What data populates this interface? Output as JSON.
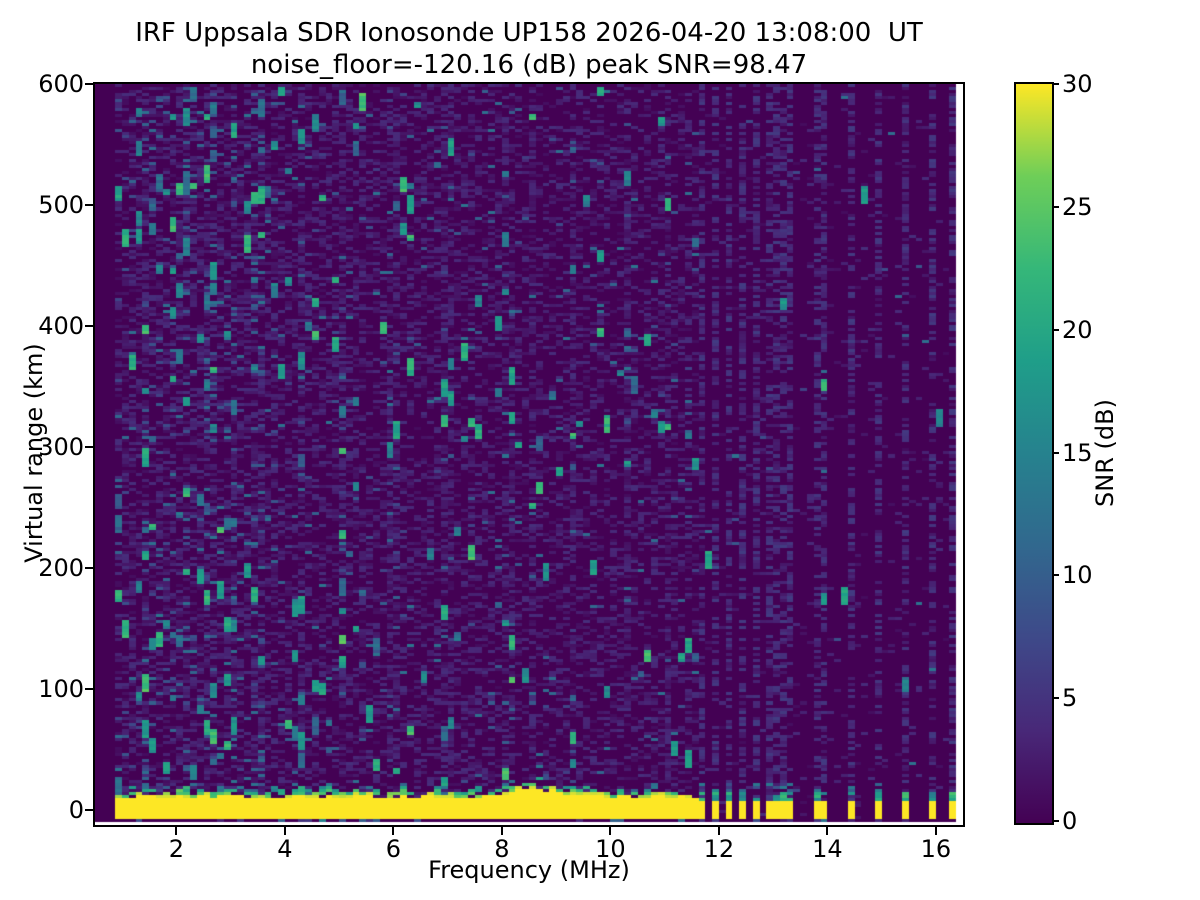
{
  "figure": {
    "title_line1": "IRF Uppsala SDR Ionosonde UP158 2026-04-20 13:08:00  UT",
    "title_line2": "noise_floor=-120.16 (dB) peak SNR=98.47"
  },
  "chart_data": {
    "type": "heatmap",
    "title": "IRF Uppsala SDR Ionosonde UP158 2026-04-20 13:08:00  UT",
    "subtitle": "noise_floor=-120.16 (dB) peak SNR=98.47",
    "xlabel": "Frequency (MHz)",
    "ylabel": "Virtual range (km)",
    "xlim": [
      0.5,
      16.5
    ],
    "ylim": [
      -12,
      600
    ],
    "x_ticks": [
      2,
      4,
      6,
      8,
      10,
      12,
      14,
      16
    ],
    "y_ticks": [
      0,
      100,
      200,
      300,
      400,
      500,
      600
    ],
    "grid": "off",
    "colorbar": {
      "label": "SNR (dB)",
      "ticks": [
        0,
        5,
        10,
        15,
        20,
        25,
        30
      ],
      "range": [
        0,
        30
      ],
      "colormap": "viridis"
    },
    "noise_floor_db": -120.16,
    "peak_snr_db": 98.47,
    "viridis_anchors": [
      "#440154",
      "#482878",
      "#3e4989",
      "#31688e",
      "#26828e",
      "#1f9e89",
      "#35b779",
      "#6ece58",
      "#fde725"
    ],
    "features": {
      "background_snr_db": 0,
      "no_data_below_mhz": 0.82,
      "ground_pulse_band": {
        "freq_range_mhz": [
          0.82,
          11.58
        ],
        "range_km": [
          -6,
          11
        ],
        "snr_db": 30,
        "bump": {
          "center_mhz": 8.6,
          "sigma_mhz": 0.55,
          "extra_km": 7.5
        }
      },
      "rfi_cluster_freqs_mhz": [
        11.72,
        11.97,
        12.22,
        12.47,
        12.68,
        12.9,
        13.12,
        13.33
      ],
      "rfi_isolated_freqs_mhz": [
        13.88,
        14.42,
        14.95,
        15.47,
        15.98,
        16.35
      ],
      "enhanced_noise_columns_mhz": [
        1.47,
        2.15,
        2.62,
        3.05,
        3.5,
        4.3,
        5.05,
        6.0,
        7.0,
        8.12,
        8.55,
        9.3,
        10.35,
        11.1
      ],
      "speckle": "faint blue dashes and teal vertical streaks, density decreasing with frequency"
    },
    "render": {
      "seed": 42,
      "df_mhz": 0.125,
      "dh_km": 2.4878,
      "f_data_min": 0.82,
      "band_f_end": 11.58,
      "band_h_bottom": -6,
      "band_h_top": 11,
      "bump_center": 8.6,
      "bump_sigma": 0.55,
      "bump_extra": 7.5,
      "fringe_km": 13,
      "seg_h_top": 9,
      "p_low": {
        "f_lt4": 0.45,
        "f_lt8": 0.38,
        "f_lt_band_end": 0.33,
        "else": 0.05
      },
      "p_teal": {
        "f_lt4": 0.055,
        "f_lt8": 0.022,
        "f_lt_band_end": 0.018,
        "else": 0.003
      },
      "p_streak": {
        "f_lt2_5": 0.02,
        "f_lt5_5": 0.012,
        "f_lt_band_end": 0.006,
        "else": 0.001
      },
      "p_rfi_dash": 0.5,
      "p_below_band": 0.28
    }
  }
}
